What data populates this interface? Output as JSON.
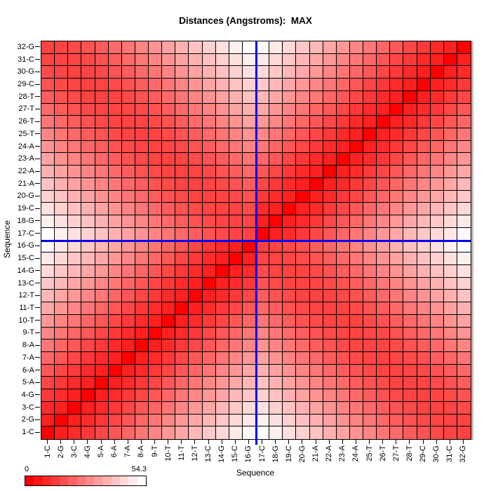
{
  "title": "Distances (Angstroms):  MAX",
  "x_axis": {
    "label": "Sequence"
  },
  "y_axis": {
    "label": "Sequence"
  },
  "legend": {
    "min_label": "0",
    "max_label": "54.3",
    "steps": 14
  },
  "colors": {
    "low": "#FF0000",
    "high": "#FFFFFF",
    "grid_line": "#000000",
    "crosshair": "#0000EE"
  },
  "crosshair": {
    "description": "blue crosshair on the boundary between 16-G and 17-C on both axes",
    "col_boundary_index": 16,
    "row_boundary_index": 16
  },
  "chart_data": {
    "type": "heatmap",
    "title": "Distances (Angstroms):  MAX",
    "xlabel": "Sequence",
    "ylabel": "Sequence",
    "value_min": 0,
    "value_max": 54.3,
    "colormap": "red (0) to white (54.3)",
    "legend_position": "bottom-left",
    "orientation": "residue 1 at bottom-left; rows listed here from residue 1 to 32",
    "categories": [
      "1-C",
      "2-G",
      "3-C",
      "4-G",
      "5-A",
      "6-A",
      "7-A",
      "8-A",
      "9-T",
      "10-T",
      "11-T",
      "12-T",
      "13-C",
      "14-G",
      "15-C",
      "16-G",
      "17-C",
      "18-G",
      "19-C",
      "20-G",
      "21-A",
      "22-A",
      "23-A",
      "24-A",
      "25-T",
      "26-T",
      "27-T",
      "28-T",
      "29-C",
      "30-G",
      "31-C",
      "32-G"
    ],
    "values": [
      [
        0,
        6.9,
        9.2,
        12.1,
        15.2,
        18.5,
        21.8,
        25.2,
        28.6,
        32.1,
        35.5,
        39.0,
        42.4,
        45.9,
        49.4,
        52.8,
        54.3,
        51.0,
        47.6,
        44.3,
        41.0,
        37.7,
        34.5,
        31.3,
        28.2,
        25.2,
        22.4,
        19.8,
        17.5,
        15.7,
        14.4,
        14.0
      ],
      [
        6.9,
        0,
        6.9,
        9.2,
        12.1,
        15.2,
        18.5,
        21.8,
        25.2,
        28.6,
        32.1,
        35.5,
        39.0,
        42.4,
        45.9,
        49.4,
        51.0,
        47.6,
        44.3,
        41.0,
        37.7,
        34.5,
        31.3,
        28.2,
        25.2,
        22.4,
        19.8,
        17.5,
        15.7,
        14.4,
        14.0,
        14.4
      ],
      [
        9.2,
        6.9,
        0,
        6.9,
        9.2,
        12.1,
        15.2,
        18.5,
        21.8,
        25.2,
        28.6,
        32.1,
        35.5,
        39.0,
        42.4,
        45.9,
        47.6,
        44.3,
        41.0,
        37.7,
        34.5,
        31.3,
        28.2,
        25.2,
        22.4,
        19.8,
        17.5,
        15.7,
        14.4,
        14.0,
        14.4,
        15.7
      ],
      [
        12.1,
        9.2,
        6.9,
        0,
        6.9,
        9.2,
        12.1,
        15.2,
        18.5,
        21.8,
        25.2,
        28.6,
        32.1,
        35.5,
        39.0,
        42.4,
        44.3,
        41.0,
        37.7,
        34.5,
        31.3,
        28.2,
        25.2,
        22.4,
        19.8,
        17.5,
        15.7,
        14.4,
        14.0,
        14.4,
        15.7,
        17.5
      ],
      [
        15.2,
        12.1,
        9.2,
        6.9,
        0,
        6.9,
        9.2,
        12.1,
        15.2,
        18.5,
        21.8,
        25.2,
        28.6,
        32.1,
        35.5,
        39.0,
        41.0,
        37.7,
        34.5,
        31.3,
        28.2,
        25.2,
        22.4,
        19.8,
        17.5,
        15.7,
        14.4,
        14.0,
        14.4,
        15.7,
        17.5,
        19.8
      ],
      [
        18.5,
        15.2,
        12.1,
        9.2,
        6.9,
        0,
        6.9,
        9.2,
        12.1,
        15.2,
        18.5,
        21.8,
        25.2,
        28.6,
        32.1,
        35.5,
        37.7,
        34.5,
        31.3,
        28.2,
        25.2,
        22.4,
        19.8,
        17.5,
        15.7,
        14.4,
        14.0,
        14.4,
        15.7,
        17.5,
        19.8,
        22.4
      ],
      [
        21.8,
        18.5,
        15.2,
        12.1,
        9.2,
        6.9,
        0,
        6.9,
        9.2,
        12.1,
        15.2,
        18.5,
        21.8,
        25.2,
        28.6,
        32.1,
        34.5,
        31.3,
        28.2,
        25.2,
        22.4,
        19.8,
        17.5,
        15.7,
        14.4,
        14.0,
        14.4,
        15.7,
        17.5,
        19.8,
        22.4,
        25.2
      ],
      [
        25.2,
        21.8,
        18.5,
        15.2,
        12.1,
        9.2,
        6.9,
        0,
        6.9,
        9.2,
        12.1,
        15.2,
        18.5,
        21.8,
        25.2,
        28.6,
        31.3,
        28.2,
        25.2,
        22.4,
        19.8,
        17.5,
        15.7,
        14.4,
        14.0,
        14.4,
        15.7,
        17.5,
        19.8,
        22.4,
        25.2,
        28.2
      ],
      [
        28.6,
        25.2,
        21.8,
        18.5,
        15.2,
        12.1,
        9.2,
        6.9,
        0,
        6.9,
        9.2,
        12.1,
        15.2,
        18.5,
        21.8,
        25.2,
        28.2,
        25.2,
        22.4,
        19.8,
        17.5,
        15.7,
        14.4,
        14.0,
        14.4,
        15.7,
        17.5,
        19.8,
        22.4,
        25.2,
        28.2,
        31.3
      ],
      [
        32.1,
        28.6,
        25.2,
        21.8,
        18.5,
        15.2,
        12.1,
        9.2,
        6.9,
        0,
        6.9,
        9.2,
        12.1,
        15.2,
        18.5,
        21.8,
        25.2,
        22.4,
        19.8,
        17.5,
        15.7,
        14.4,
        14.0,
        14.4,
        15.7,
        17.5,
        19.8,
        22.4,
        25.2,
        28.2,
        31.3,
        34.5
      ],
      [
        35.5,
        32.1,
        28.6,
        25.2,
        21.8,
        18.5,
        15.2,
        12.1,
        9.2,
        6.9,
        0,
        6.9,
        9.2,
        12.1,
        15.2,
        18.5,
        22.4,
        19.8,
        17.5,
        15.7,
        14.4,
        14.0,
        14.4,
        15.7,
        17.5,
        19.8,
        22.4,
        25.2,
        28.2,
        31.3,
        34.5,
        37.7
      ],
      [
        39.0,
        35.5,
        32.1,
        28.6,
        25.2,
        21.8,
        18.5,
        15.2,
        12.1,
        9.2,
        6.9,
        0,
        6.9,
        9.2,
        12.1,
        15.2,
        19.8,
        17.5,
        15.7,
        14.4,
        14.0,
        14.4,
        15.7,
        17.5,
        19.8,
        22.4,
        25.2,
        28.2,
        31.3,
        34.5,
        37.7,
        41.0
      ],
      [
        42.4,
        39.0,
        35.5,
        32.1,
        28.6,
        25.2,
        21.8,
        18.5,
        15.2,
        12.1,
        9.2,
        6.9,
        0,
        6.9,
        9.2,
        12.1,
        17.5,
        15.7,
        14.4,
        14.0,
        14.4,
        15.7,
        17.5,
        19.8,
        22.4,
        25.2,
        28.2,
        31.3,
        34.5,
        37.7,
        41.0,
        44.3
      ],
      [
        45.9,
        42.4,
        39.0,
        35.5,
        32.1,
        28.6,
        25.2,
        21.8,
        18.5,
        15.2,
        12.1,
        9.2,
        6.9,
        0,
        6.9,
        9.2,
        15.7,
        14.4,
        14.0,
        14.4,
        15.7,
        17.5,
        19.8,
        22.4,
        25.2,
        28.2,
        31.3,
        34.5,
        37.7,
        41.0,
        44.3,
        47.6
      ],
      [
        49.4,
        45.9,
        42.4,
        39.0,
        35.5,
        32.1,
        28.6,
        25.2,
        21.8,
        18.5,
        15.2,
        12.1,
        9.2,
        6.9,
        0,
        6.9,
        14.4,
        14.0,
        14.4,
        15.7,
        17.5,
        19.8,
        22.4,
        25.2,
        28.2,
        31.3,
        34.5,
        37.7,
        41.0,
        44.3,
        47.6,
        51.0
      ],
      [
        52.8,
        49.4,
        45.9,
        42.4,
        39.0,
        35.5,
        32.1,
        28.6,
        25.2,
        21.8,
        18.5,
        15.2,
        12.1,
        9.2,
        6.9,
        0,
        14.0,
        14.4,
        15.7,
        17.5,
        19.8,
        22.4,
        25.2,
        28.2,
        31.3,
        34.5,
        37.7,
        41.0,
        44.3,
        47.6,
        51.0,
        54.3
      ],
      [
        54.3,
        51.0,
        47.6,
        44.3,
        41.0,
        37.7,
        34.5,
        31.3,
        28.2,
        25.2,
        22.4,
        19.8,
        17.5,
        15.7,
        14.4,
        14.0,
        0,
        6.9,
        9.2,
        12.1,
        15.2,
        18.5,
        21.8,
        25.2,
        28.6,
        32.1,
        35.5,
        39.0,
        42.4,
        45.9,
        49.4,
        52.8
      ],
      [
        51.0,
        47.6,
        44.3,
        41.0,
        37.7,
        34.5,
        31.3,
        28.2,
        25.2,
        22.4,
        19.8,
        17.5,
        15.7,
        14.4,
        14.0,
        14.4,
        6.9,
        0,
        6.9,
        9.2,
        12.1,
        15.2,
        18.5,
        21.8,
        25.2,
        28.6,
        32.1,
        35.5,
        39.0,
        42.4,
        45.9,
        49.4
      ],
      [
        47.6,
        44.3,
        41.0,
        37.7,
        34.5,
        31.3,
        28.2,
        25.2,
        22.4,
        19.8,
        17.5,
        15.7,
        14.4,
        14.0,
        14.4,
        15.7,
        9.2,
        6.9,
        0,
        6.9,
        9.2,
        12.1,
        15.2,
        18.5,
        21.8,
        25.2,
        28.6,
        32.1,
        35.5,
        39.0,
        42.4,
        45.9
      ],
      [
        44.3,
        41.0,
        37.7,
        34.5,
        31.3,
        28.2,
        25.2,
        22.4,
        19.8,
        17.5,
        15.7,
        14.4,
        14.0,
        14.4,
        15.7,
        17.5,
        12.1,
        9.2,
        6.9,
        0,
        6.9,
        9.2,
        12.1,
        15.2,
        18.5,
        21.8,
        25.2,
        28.6,
        32.1,
        35.5,
        39.0,
        42.4
      ],
      [
        41.0,
        37.7,
        34.5,
        31.3,
        28.2,
        25.2,
        22.4,
        19.8,
        17.5,
        15.7,
        14.4,
        14.0,
        14.4,
        15.7,
        17.5,
        19.8,
        15.2,
        12.1,
        9.2,
        6.9,
        0,
        6.9,
        9.2,
        12.1,
        15.2,
        18.5,
        21.8,
        25.2,
        28.6,
        32.1,
        35.5,
        39.0
      ],
      [
        37.7,
        34.5,
        31.3,
        28.2,
        25.2,
        22.4,
        19.8,
        17.5,
        15.7,
        14.4,
        14.0,
        14.4,
        15.7,
        17.5,
        19.8,
        22.4,
        18.5,
        15.2,
        12.1,
        9.2,
        6.9,
        0,
        6.9,
        9.2,
        12.1,
        15.2,
        18.5,
        21.8,
        25.2,
        28.6,
        32.1,
        35.5
      ],
      [
        34.5,
        31.3,
        28.2,
        25.2,
        22.4,
        19.8,
        17.5,
        15.7,
        14.4,
        14.0,
        14.4,
        15.7,
        17.5,
        19.8,
        22.4,
        25.2,
        21.8,
        18.5,
        15.2,
        12.1,
        9.2,
        6.9,
        0,
        6.9,
        9.2,
        12.1,
        15.2,
        18.5,
        21.8,
        25.2,
        28.6,
        32.1
      ],
      [
        31.3,
        28.2,
        25.2,
        22.4,
        19.8,
        17.5,
        15.7,
        14.4,
        14.0,
        14.4,
        15.7,
        17.5,
        19.8,
        22.4,
        25.2,
        28.2,
        25.2,
        21.8,
        18.5,
        15.2,
        12.1,
        9.2,
        6.9,
        0,
        6.9,
        9.2,
        12.1,
        15.2,
        18.5,
        21.8,
        25.2,
        28.6
      ],
      [
        28.2,
        25.2,
        22.4,
        19.8,
        17.5,
        15.7,
        14.4,
        14.0,
        14.4,
        15.7,
        17.5,
        19.8,
        22.4,
        25.2,
        28.2,
        31.3,
        28.6,
        25.2,
        21.8,
        18.5,
        15.2,
        12.1,
        9.2,
        6.9,
        0,
        6.9,
        9.2,
        12.1,
        15.2,
        18.5,
        21.8,
        25.2
      ],
      [
        25.2,
        22.4,
        19.8,
        17.5,
        15.7,
        14.4,
        14.0,
        14.4,
        15.7,
        17.5,
        19.8,
        22.4,
        25.2,
        28.2,
        31.3,
        34.5,
        32.1,
        28.6,
        25.2,
        21.8,
        18.5,
        15.2,
        12.1,
        9.2,
        6.9,
        0,
        6.9,
        9.2,
        12.1,
        15.2,
        18.5,
        21.8
      ],
      [
        22.4,
        19.8,
        17.5,
        15.7,
        14.4,
        14.0,
        14.4,
        15.7,
        17.5,
        19.8,
        22.4,
        25.2,
        28.2,
        31.3,
        34.5,
        37.7,
        35.5,
        32.1,
        28.6,
        25.2,
        21.8,
        18.5,
        15.2,
        12.1,
        9.2,
        6.9,
        0,
        6.9,
        9.2,
        12.1,
        15.2,
        18.5
      ],
      [
        19.8,
        17.5,
        15.7,
        14.4,
        14.0,
        14.4,
        15.7,
        17.5,
        19.8,
        22.4,
        25.2,
        28.2,
        31.3,
        34.5,
        37.7,
        41.0,
        39.0,
        35.5,
        32.1,
        28.6,
        25.2,
        21.8,
        18.5,
        15.2,
        12.1,
        9.2,
        6.9,
        0,
        6.9,
        9.2,
        12.1,
        15.2
      ],
      [
        17.5,
        15.7,
        14.4,
        14.0,
        14.4,
        15.7,
        17.5,
        19.8,
        22.4,
        25.2,
        28.2,
        31.3,
        34.5,
        37.7,
        41.0,
        44.3,
        42.4,
        39.0,
        35.5,
        32.1,
        28.6,
        25.2,
        21.8,
        18.5,
        15.2,
        12.1,
        9.2,
        6.9,
        0,
        6.9,
        9.2,
        12.1
      ],
      [
        15.7,
        14.4,
        14.0,
        14.4,
        15.7,
        17.5,
        19.8,
        22.4,
        25.2,
        28.2,
        31.3,
        34.5,
        37.7,
        41.0,
        44.3,
        47.6,
        45.9,
        42.4,
        39.0,
        35.5,
        32.1,
        28.6,
        25.2,
        21.8,
        18.5,
        15.2,
        12.1,
        9.2,
        6.9,
        0,
        6.9,
        9.2
      ],
      [
        14.4,
        14.0,
        14.4,
        15.7,
        17.5,
        19.8,
        22.4,
        25.2,
        28.2,
        31.3,
        34.5,
        37.7,
        41.0,
        44.3,
        47.6,
        51.0,
        49.4,
        45.9,
        42.4,
        39.0,
        35.5,
        32.1,
        28.6,
        25.2,
        21.8,
        18.5,
        15.2,
        12.1,
        9.2,
        6.9,
        0,
        6.9
      ],
      [
        14.0,
        14.4,
        15.7,
        17.5,
        19.8,
        22.4,
        25.2,
        28.2,
        31.3,
        34.5,
        37.7,
        41.0,
        44.3,
        47.6,
        51.0,
        54.3,
        52.8,
        49.4,
        45.9,
        42.4,
        39.0,
        35.5,
        32.1,
        28.6,
        25.2,
        21.8,
        18.5,
        15.2,
        12.1,
        9.2,
        6.9,
        0
      ]
    ]
  }
}
